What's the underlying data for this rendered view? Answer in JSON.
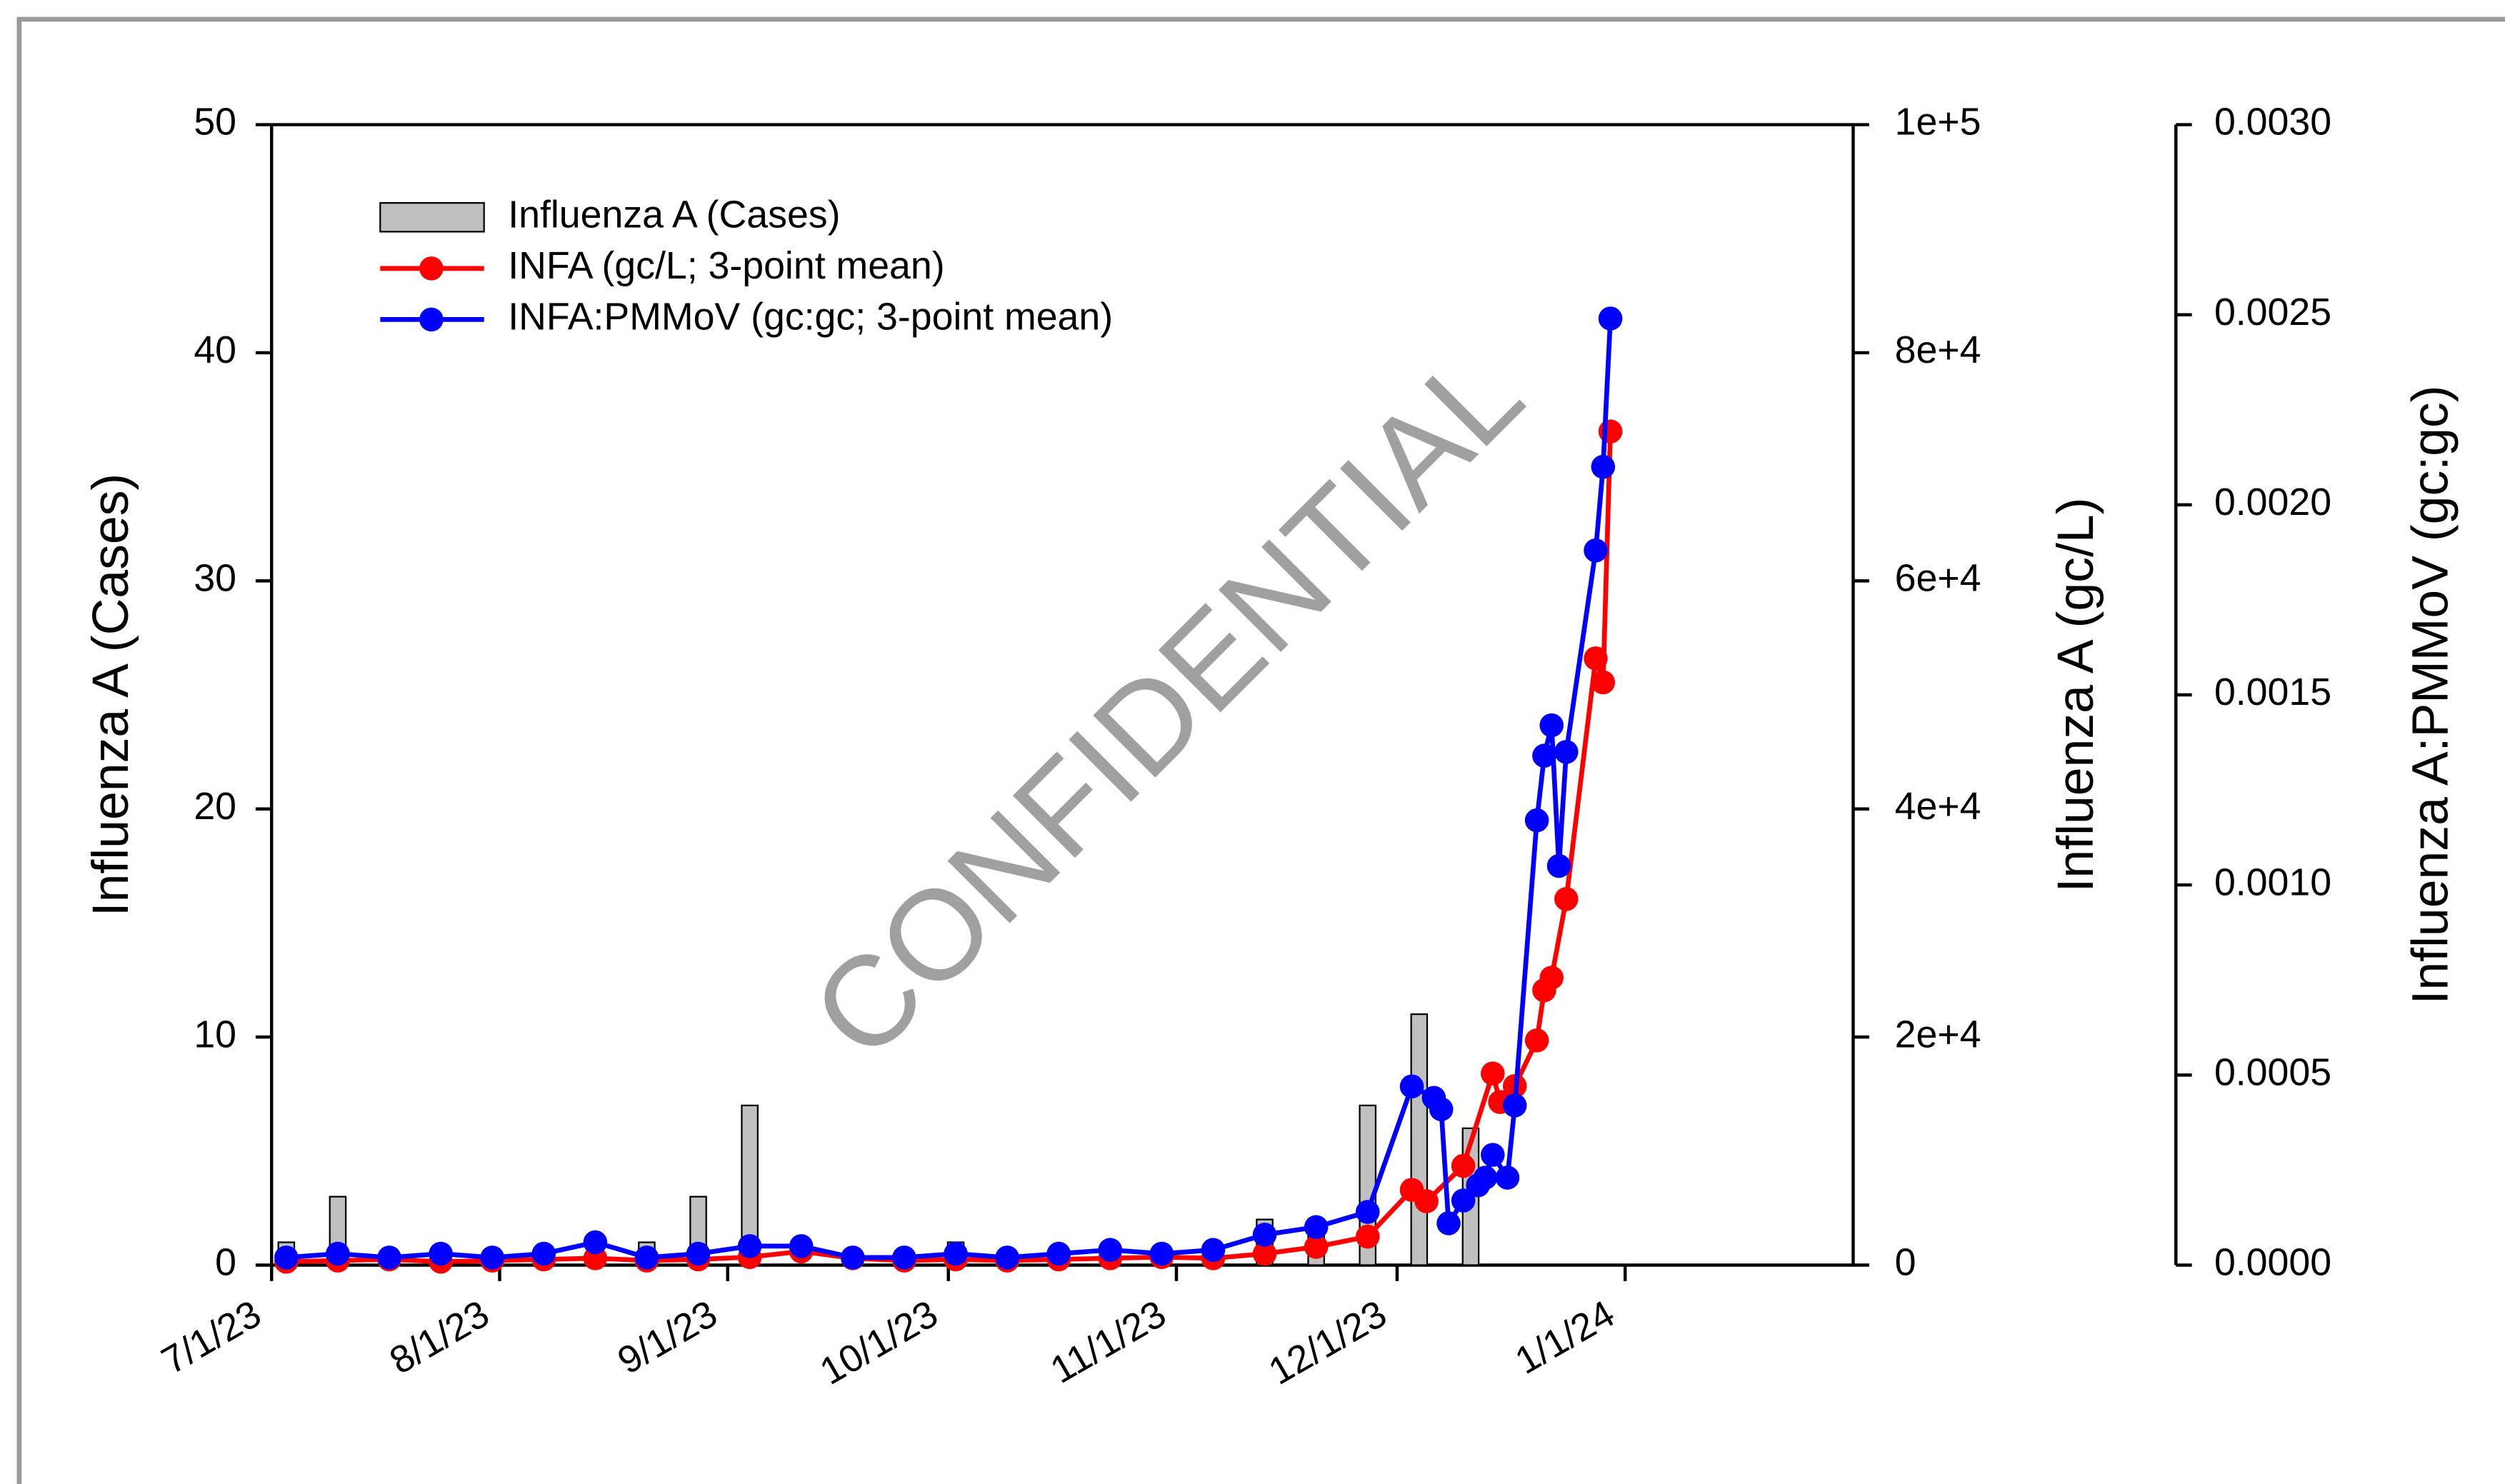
{
  "chart_data": {
    "type": "bar-line",
    "y_label": "Influenza A (Cases)",
    "y2_label": "Influenza A (gc/L)",
    "y3_label": "Influenza A:PMMoV (gc:gc)",
    "watermark": "CONFIDENTIAL",
    "xlim": [
      "7/1/23",
      "2/1/24"
    ],
    "xticks": [
      "7/1/23",
      "8/1/23",
      "9/1/23",
      "10/1/23",
      "11/1/23",
      "12/1/23",
      "1/1/24"
    ],
    "ylim": [
      0,
      50
    ],
    "yticks": [
      0,
      10,
      20,
      30,
      40,
      50
    ],
    "y2lim": [
      0,
      100000
    ],
    "y2ticks": [
      0,
      {
        "value": 20000,
        "label": "2e+4"
      },
      {
        "value": 40000,
        "label": "4e+4"
      },
      {
        "value": 60000,
        "label": "6e+4"
      },
      {
        "value": 80000,
        "label": "8e+4"
      },
      {
        "value": 100000,
        "label": "1e+5"
      }
    ],
    "y3lim": [
      0,
      0.003
    ],
    "y3ticks": [
      {
        "value": 0,
        "label": "0.0000"
      },
      {
        "value": 0.0005,
        "label": "0.0005"
      },
      {
        "value": 0.001,
        "label": "0.0010"
      },
      {
        "value": 0.0015,
        "label": "0.0015"
      },
      {
        "value": 0.002,
        "label": "0.0020"
      },
      {
        "value": 0.0025,
        "label": "0.0025"
      },
      {
        "value": 0.003,
        "label": "0.0030"
      }
    ],
    "series": [
      {
        "name": "Influenza A (Cases)",
        "kind": "bar",
        "axis": "y",
        "color": "#c0c0c0",
        "x": [
          "7/3/23",
          "7/10/23",
          "8/21/23",
          "8/28/23",
          "9/4/23",
          "10/2/23",
          "10/23/23",
          "11/13/23",
          "11/20/23",
          "11/27/23",
          "12/4/23",
          "12/11/23"
        ],
        "values": [
          1,
          3,
          1,
          3,
          7,
          1,
          1,
          2,
          2,
          7,
          11,
          6
        ]
      },
      {
        "name": "INFA (gc/L; 3-point mean)",
        "kind": "line",
        "axis": "y2",
        "color": "#ff0000",
        "x": [
          "7/3/23",
          "7/10/23",
          "7/17/23",
          "7/24/23",
          "7/31/23",
          "8/7/23",
          "8/14/23",
          "8/21/23",
          "8/28/23",
          "9/4/23",
          "9/11/23",
          "9/18/23",
          "9/25/23",
          "10/2/23",
          "10/9/23",
          "10/16/23",
          "10/23/23",
          "10/30/23",
          "11/6/23",
          "11/13/23",
          "11/20/23",
          "11/27/23",
          "12/3/23",
          "12/5/23",
          "12/10/23",
          "12/14/23",
          "12/15/23",
          "12/17/23",
          "12/20/23",
          "12/21/23",
          "12/22/23",
          "12/24/23",
          "12/28/23",
          "12/29/23",
          "12/30/23"
        ],
        "values": [
          300,
          400,
          500,
          300,
          400,
          500,
          600,
          400,
          500,
          700,
          1200,
          600,
          400,
          500,
          400,
          500,
          600,
          700,
          600,
          1000,
          1600,
          2500,
          6600,
          5600,
          8700,
          16800,
          14300,
          15700,
          19700,
          24100,
          25200,
          32100,
          53200,
          51100,
          73100
        ]
      },
      {
        "name": "INFA:PMMoV (gc:gc; 3-point mean)",
        "kind": "line",
        "axis": "y3",
        "color": "#0000ff",
        "x": [
          "7/3/23",
          "7/10/23",
          "7/17/23",
          "7/24/23",
          "7/31/23",
          "8/7/23",
          "8/14/23",
          "8/21/23",
          "8/28/23",
          "9/4/23",
          "9/11/23",
          "9/18/23",
          "9/25/23",
          "10/2/23",
          "10/9/23",
          "10/16/23",
          "10/23/23",
          "10/30/23",
          "11/6/23",
          "11/13/23",
          "11/20/23",
          "11/27/23",
          "12/3/23",
          "12/6/23",
          "12/7/23",
          "12/8/23",
          "12/10/23",
          "12/12/23",
          "12/13/23",
          "12/14/23",
          "12/16/23",
          "12/17/23",
          "12/20/23",
          "12/21/23",
          "12/22/23",
          "12/23/23",
          "12/24/23",
          "12/28/23",
          "12/29/23",
          "12/30/23"
        ],
        "values": [
          2e-05,
          3e-05,
          2e-05,
          3e-05,
          2e-05,
          3e-05,
          6e-05,
          2e-05,
          3e-05,
          5e-05,
          5e-05,
          2e-05,
          2e-05,
          3e-05,
          2e-05,
          3e-05,
          4e-05,
          3e-05,
          4e-05,
          8e-05,
          0.0001,
          0.00014,
          0.00047,
          0.00044,
          0.00041,
          0.00011,
          0.00017,
          0.00021,
          0.00023,
          0.00029,
          0.00023,
          0.00042,
          0.00117,
          0.00134,
          0.00142,
          0.00105,
          0.00135,
          0.00188,
          0.0021,
          0.00249
        ]
      }
    ]
  }
}
